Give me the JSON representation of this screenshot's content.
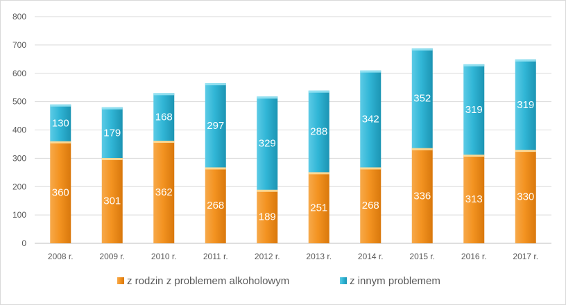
{
  "chart_data": {
    "type": "bar",
    "stacked": true,
    "categories": [
      "2008 r.",
      "2009 r.",
      "2010 r.",
      "2011 r.",
      "2012 r.",
      "2013 r.",
      "2014 r.",
      "2015 r.",
      "2016 r.",
      "2017 r."
    ],
    "series": [
      {
        "name": "z rodzin z problemem alkoholowym",
        "color": "#f39321",
        "values": [
          360,
          301,
          362,
          268,
          189,
          251,
          268,
          336,
          313,
          330
        ]
      },
      {
        "name": "z innym problemem",
        "color": "#31b6d6",
        "values": [
          130,
          179,
          168,
          297,
          329,
          288,
          342,
          352,
          319,
          319
        ]
      }
    ],
    "ylim": [
      0,
      800
    ],
    "yticks": [
      0,
      100,
      200,
      300,
      400,
      500,
      600,
      700,
      800
    ],
    "grid": true,
    "legend_position": "bottom"
  }
}
